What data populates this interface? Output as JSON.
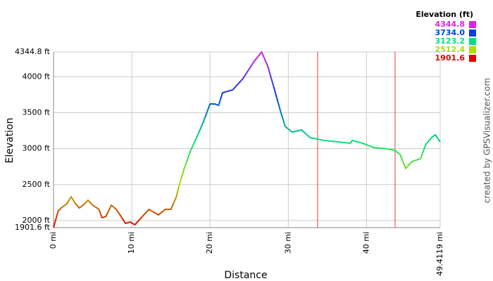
{
  "chart_data": {
    "type": "line",
    "xlabel": "Distance",
    "ylabel": "Elevation",
    "credit": "created by GPSVisualizer.com",
    "x": [
      0,
      0.6,
      1.1,
      1.7,
      2.25,
      2.8,
      3.3,
      4.0,
      4.4,
      5.0,
      5.8,
      6.2,
      6.7,
      7.4,
      8.0,
      8.5,
      9.2,
      9.8,
      10.4,
      11.2,
      12.2,
      13.4,
      14.3,
      15.0,
      15.7,
      16.1,
      16.7,
      17.5,
      18.2,
      19.1,
      20.0,
      20.6,
      21.1,
      21.6,
      22.9,
      24.2,
      25.6,
      26.6,
      27.4,
      28.3,
      29.0,
      29.6,
      30.5,
      31.7,
      32.8,
      34.6,
      36.4,
      37.9,
      38.2,
      39.5,
      40.9,
      42.7,
      43.6,
      44.3,
      45.0,
      45.8,
      46.9,
      47.6,
      48.4,
      48.8,
      49.4119
    ],
    "series": [
      {
        "name": "Elevation (ft)",
        "values": [
          1902,
          2136,
          2185,
          2234,
          2332,
          2234,
          2175,
          2234,
          2283,
          2214,
          2156,
          2038,
          2058,
          2214,
          2156,
          2078,
          1960,
          1980,
          1941,
          2038,
          2156,
          2078,
          2156,
          2156,
          2332,
          2508,
          2723,
          2967,
          3133,
          3358,
          3622,
          3622,
          3602,
          3778,
          3818,
          3974,
          4209,
          4345,
          4140,
          3798,
          3524,
          3309,
          3231,
          3260,
          3153,
          3114,
          3094,
          3075,
          3114,
          3075,
          3016,
          2996,
          2977,
          2918,
          2723,
          2821,
          2860,
          3065,
          3163,
          3192,
          3094
        ]
      }
    ],
    "legend": {
      "entries": [
        {
          "value": 4344.8,
          "label": "4344.8",
          "color": "#e020e0"
        },
        {
          "value": 3734,
          "label": "3734.0",
          "color": "#0040e0"
        },
        {
          "value": 3123.2,
          "label": "3123.2",
          "color": "#00e080"
        },
        {
          "value": 2512.4,
          "label": "2512.4",
          "color": "#a8e000"
        },
        {
          "value": 1901.6,
          "label": "1901.6",
          "color": "#e00000"
        }
      ]
    },
    "markers": {
      "color": "#e04040",
      "x": [
        33.75,
        43.65
      ]
    },
    "xlim": [
      0,
      49.4119
    ],
    "xticks": [
      {
        "value": 0,
        "label": "0 mi"
      },
      {
        "value": 10,
        "label": "10 mi"
      },
      {
        "value": 20,
        "label": "20 mi"
      },
      {
        "value": 30,
        "label": "30 mi"
      },
      {
        "value": 40,
        "label": "40 mi"
      },
      {
        "value": 49.4119,
        "label": "49.4119 mi"
      }
    ],
    "ylim": [
      1901.6,
      4344.8
    ],
    "yticks": [
      {
        "value": 1901.6,
        "label": "1901.6 ft"
      },
      {
        "value": 2000,
        "label": "2000 ft"
      },
      {
        "value": 2500,
        "label": "2500 ft"
      },
      {
        "value": 3000,
        "label": "3000 ft"
      },
      {
        "value": 3500,
        "label": "3500 ft"
      },
      {
        "value": 4000,
        "label": "4000 ft"
      },
      {
        "value": 4344.8,
        "label": "4344.8 ft"
      }
    ],
    "grid": true
  }
}
